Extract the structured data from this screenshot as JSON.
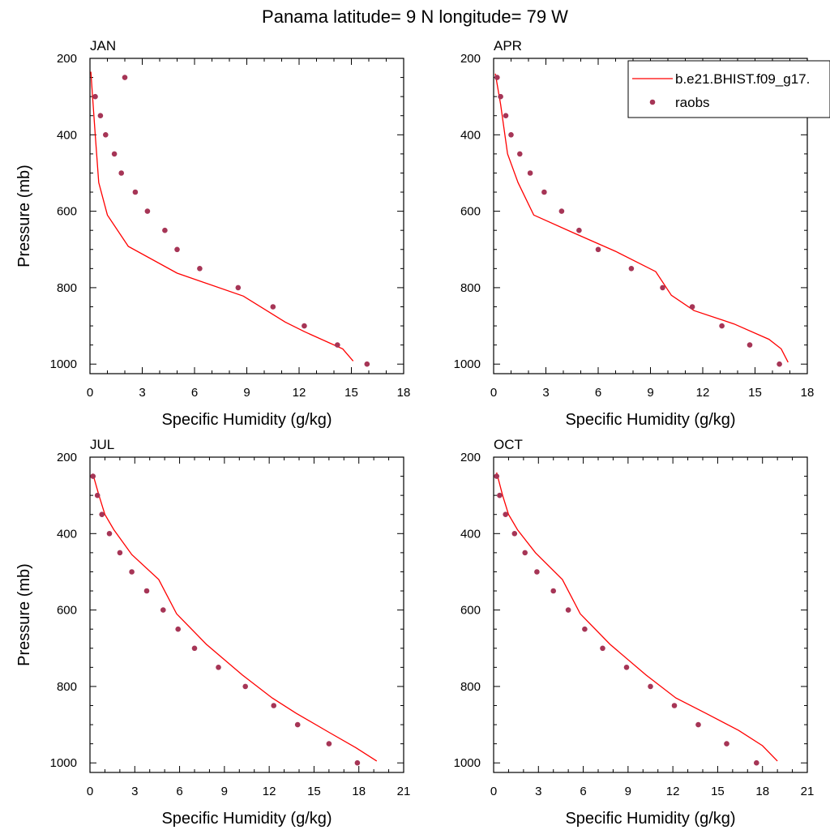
{
  "figure_title": "Panama  latitude= 9 N longitude= 79 W",
  "legend": {
    "position": "top-right",
    "entries": [
      {
        "label": "b.e21.BHIST.f09_g17.",
        "style": "line",
        "color": "#ff0000"
      },
      {
        "label": "raobs",
        "style": "marker",
        "color": "#a63556"
      }
    ]
  },
  "colors": {
    "model_line": "#ff0000",
    "raobs_marker": "#a63556"
  },
  "chart_data": [
    {
      "type": "line",
      "title": "JAN",
      "xlabel": "Specific Humidity (g/kg)",
      "ylabel": "Pressure (mb)",
      "xlim": [
        0,
        18
      ],
      "ylim": [
        1025,
        200
      ],
      "y_inverted": true,
      "xticks": [
        0,
        3,
        6,
        9,
        12,
        15,
        18
      ],
      "yticks": [
        200,
        400,
        600,
        800,
        1000
      ],
      "series": [
        {
          "name": "b.e21.BHIST.f09_g17.",
          "kind": "line",
          "x": [
            0.05,
            0.15,
            0.3,
            0.5,
            1.0,
            2.2,
            5.0,
            8.8,
            11.2,
            12.3,
            14.5,
            15.1
          ],
          "y": [
            235,
            300,
            400,
            525,
            610,
            692,
            762,
            822,
            890,
            915,
            960,
            992
          ]
        },
        {
          "name": "raobs",
          "kind": "scatter",
          "x": [
            2.0,
            0.3,
            0.6,
            0.9,
            1.4,
            1.8,
            2.6,
            3.3,
            4.3,
            5.0,
            6.3,
            8.5,
            10.5,
            12.3,
            14.2,
            15.9
          ],
          "y": [
            250,
            300,
            350,
            400,
            450,
            500,
            550,
            600,
            650,
            700,
            750,
            800,
            850,
            900,
            950,
            1000
          ]
        }
      ]
    },
    {
      "type": "line",
      "title": "APR",
      "xlabel": "Specific Humidity (g/kg)",
      "ylabel": "",
      "xlim": [
        0,
        18
      ],
      "ylim": [
        1025,
        200
      ],
      "y_inverted": true,
      "xticks": [
        0,
        3,
        6,
        9,
        12,
        15,
        18
      ],
      "yticks": [
        200,
        400,
        600,
        800,
        1000
      ],
      "series": [
        {
          "name": "b.e21.BHIST.f09_g17.",
          "kind": "line",
          "x": [
            0.1,
            0.4,
            0.8,
            1.4,
            2.3,
            4.5,
            7.0,
            9.3,
            10.2,
            11.5,
            13.8,
            15.8,
            16.5,
            16.9
          ],
          "y": [
            240,
            320,
            450,
            525,
            610,
            655,
            705,
            758,
            820,
            860,
            895,
            935,
            960,
            995
          ]
        },
        {
          "name": "raobs",
          "kind": "scatter",
          "x": [
            0.2,
            0.4,
            0.7,
            1.0,
            1.5,
            2.1,
            2.9,
            3.9,
            4.9,
            6.0,
            7.9,
            9.7,
            11.4,
            13.1,
            14.7,
            16.4
          ],
          "y": [
            250,
            300,
            350,
            400,
            450,
            500,
            550,
            600,
            650,
            700,
            750,
            800,
            850,
            900,
            950,
            1000
          ]
        }
      ]
    },
    {
      "type": "line",
      "title": "JUL",
      "xlabel": "Specific Humidity (g/kg)",
      "ylabel": "Pressure (mb)",
      "xlim": [
        0,
        21
      ],
      "ylim": [
        1025,
        200
      ],
      "y_inverted": true,
      "xticks": [
        0,
        3,
        6,
        9,
        12,
        15,
        18,
        21
      ],
      "yticks": [
        200,
        400,
        600,
        800,
        1000
      ],
      "series": [
        {
          "name": "b.e21.BHIST.f09_g17.",
          "kind": "line",
          "x": [
            0.2,
            0.6,
            1.0,
            1.6,
            2.8,
            4.6,
            5.8,
            7.8,
            10.2,
            12.2,
            13.8,
            16.0,
            17.8,
            19.2
          ],
          "y": [
            245,
            300,
            350,
            390,
            455,
            520,
            610,
            690,
            770,
            830,
            870,
            920,
            960,
            995
          ]
        },
        {
          "name": "raobs",
          "kind": "scatter",
          "x": [
            0.2,
            0.5,
            0.8,
            1.3,
            2.0,
            2.8,
            3.8,
            4.9,
            5.9,
            7.0,
            8.6,
            10.4,
            12.3,
            13.9,
            16.0,
            17.9
          ],
          "y": [
            250,
            300,
            350,
            400,
            450,
            500,
            550,
            600,
            650,
            700,
            750,
            800,
            850,
            900,
            950,
            1000
          ]
        }
      ]
    },
    {
      "type": "line",
      "title": "OCT",
      "xlabel": "Specific Humidity (g/kg)",
      "ylabel": "",
      "xlim": [
        0,
        21
      ],
      "ylim": [
        1025,
        200
      ],
      "y_inverted": true,
      "xticks": [
        0,
        3,
        6,
        9,
        12,
        15,
        18,
        21
      ],
      "yticks": [
        200,
        400,
        600,
        800,
        1000
      ],
      "series": [
        {
          "name": "b.e21.BHIST.f09_g17.",
          "kind": "line",
          "x": [
            0.2,
            0.6,
            1.0,
            1.6,
            2.8,
            4.6,
            5.8,
            7.8,
            10.2,
            12.2,
            14.2,
            16.4,
            18.0,
            19.0
          ],
          "y": [
            240,
            300,
            350,
            390,
            450,
            520,
            610,
            690,
            770,
            830,
            870,
            915,
            955,
            995
          ]
        },
        {
          "name": "raobs",
          "kind": "scatter",
          "x": [
            0.2,
            0.4,
            0.8,
            1.4,
            2.1,
            2.9,
            4.0,
            5.0,
            6.1,
            7.3,
            8.9,
            10.5,
            12.1,
            13.7,
            15.6,
            17.6
          ],
          "y": [
            250,
            300,
            350,
            400,
            450,
            500,
            550,
            600,
            650,
            700,
            750,
            800,
            850,
            900,
            950,
            1000
          ]
        }
      ]
    }
  ]
}
